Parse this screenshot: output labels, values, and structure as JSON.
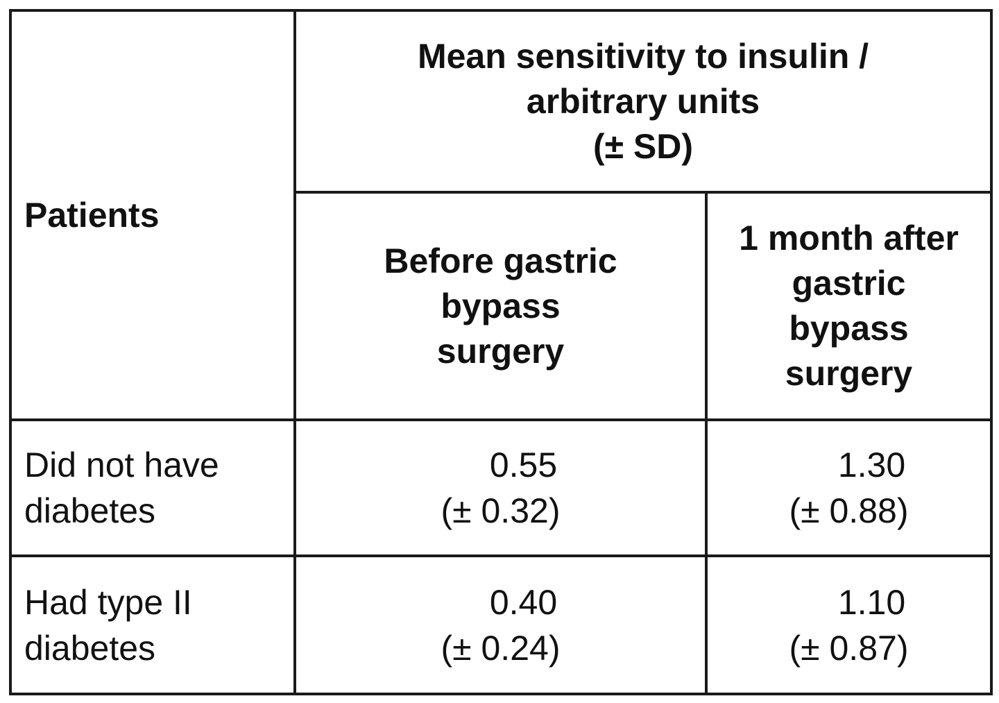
{
  "table": {
    "header": {
      "patients": "Patients",
      "group_title": [
        "Mean sensitivity to insulin /",
        "arbitrary units",
        "(± SD)"
      ],
      "before": [
        "Before gastric",
        "bypass",
        "surgery"
      ],
      "after": [
        "1 month after",
        "gastric",
        "bypass",
        "surgery"
      ]
    },
    "rows": [
      {
        "label": [
          "Did not have",
          "diabetes"
        ],
        "before": {
          "mean": "0.55",
          "sd": "(± 0.32)"
        },
        "after": {
          "mean": "1.30",
          "sd": "(± 0.88)"
        }
      },
      {
        "label": [
          "Had type II",
          "diabetes"
        ],
        "before": {
          "mean": "0.40",
          "sd": "(± 0.24)"
        },
        "after": {
          "mean": "1.10",
          "sd": "(± 0.87)"
        }
      }
    ]
  }
}
